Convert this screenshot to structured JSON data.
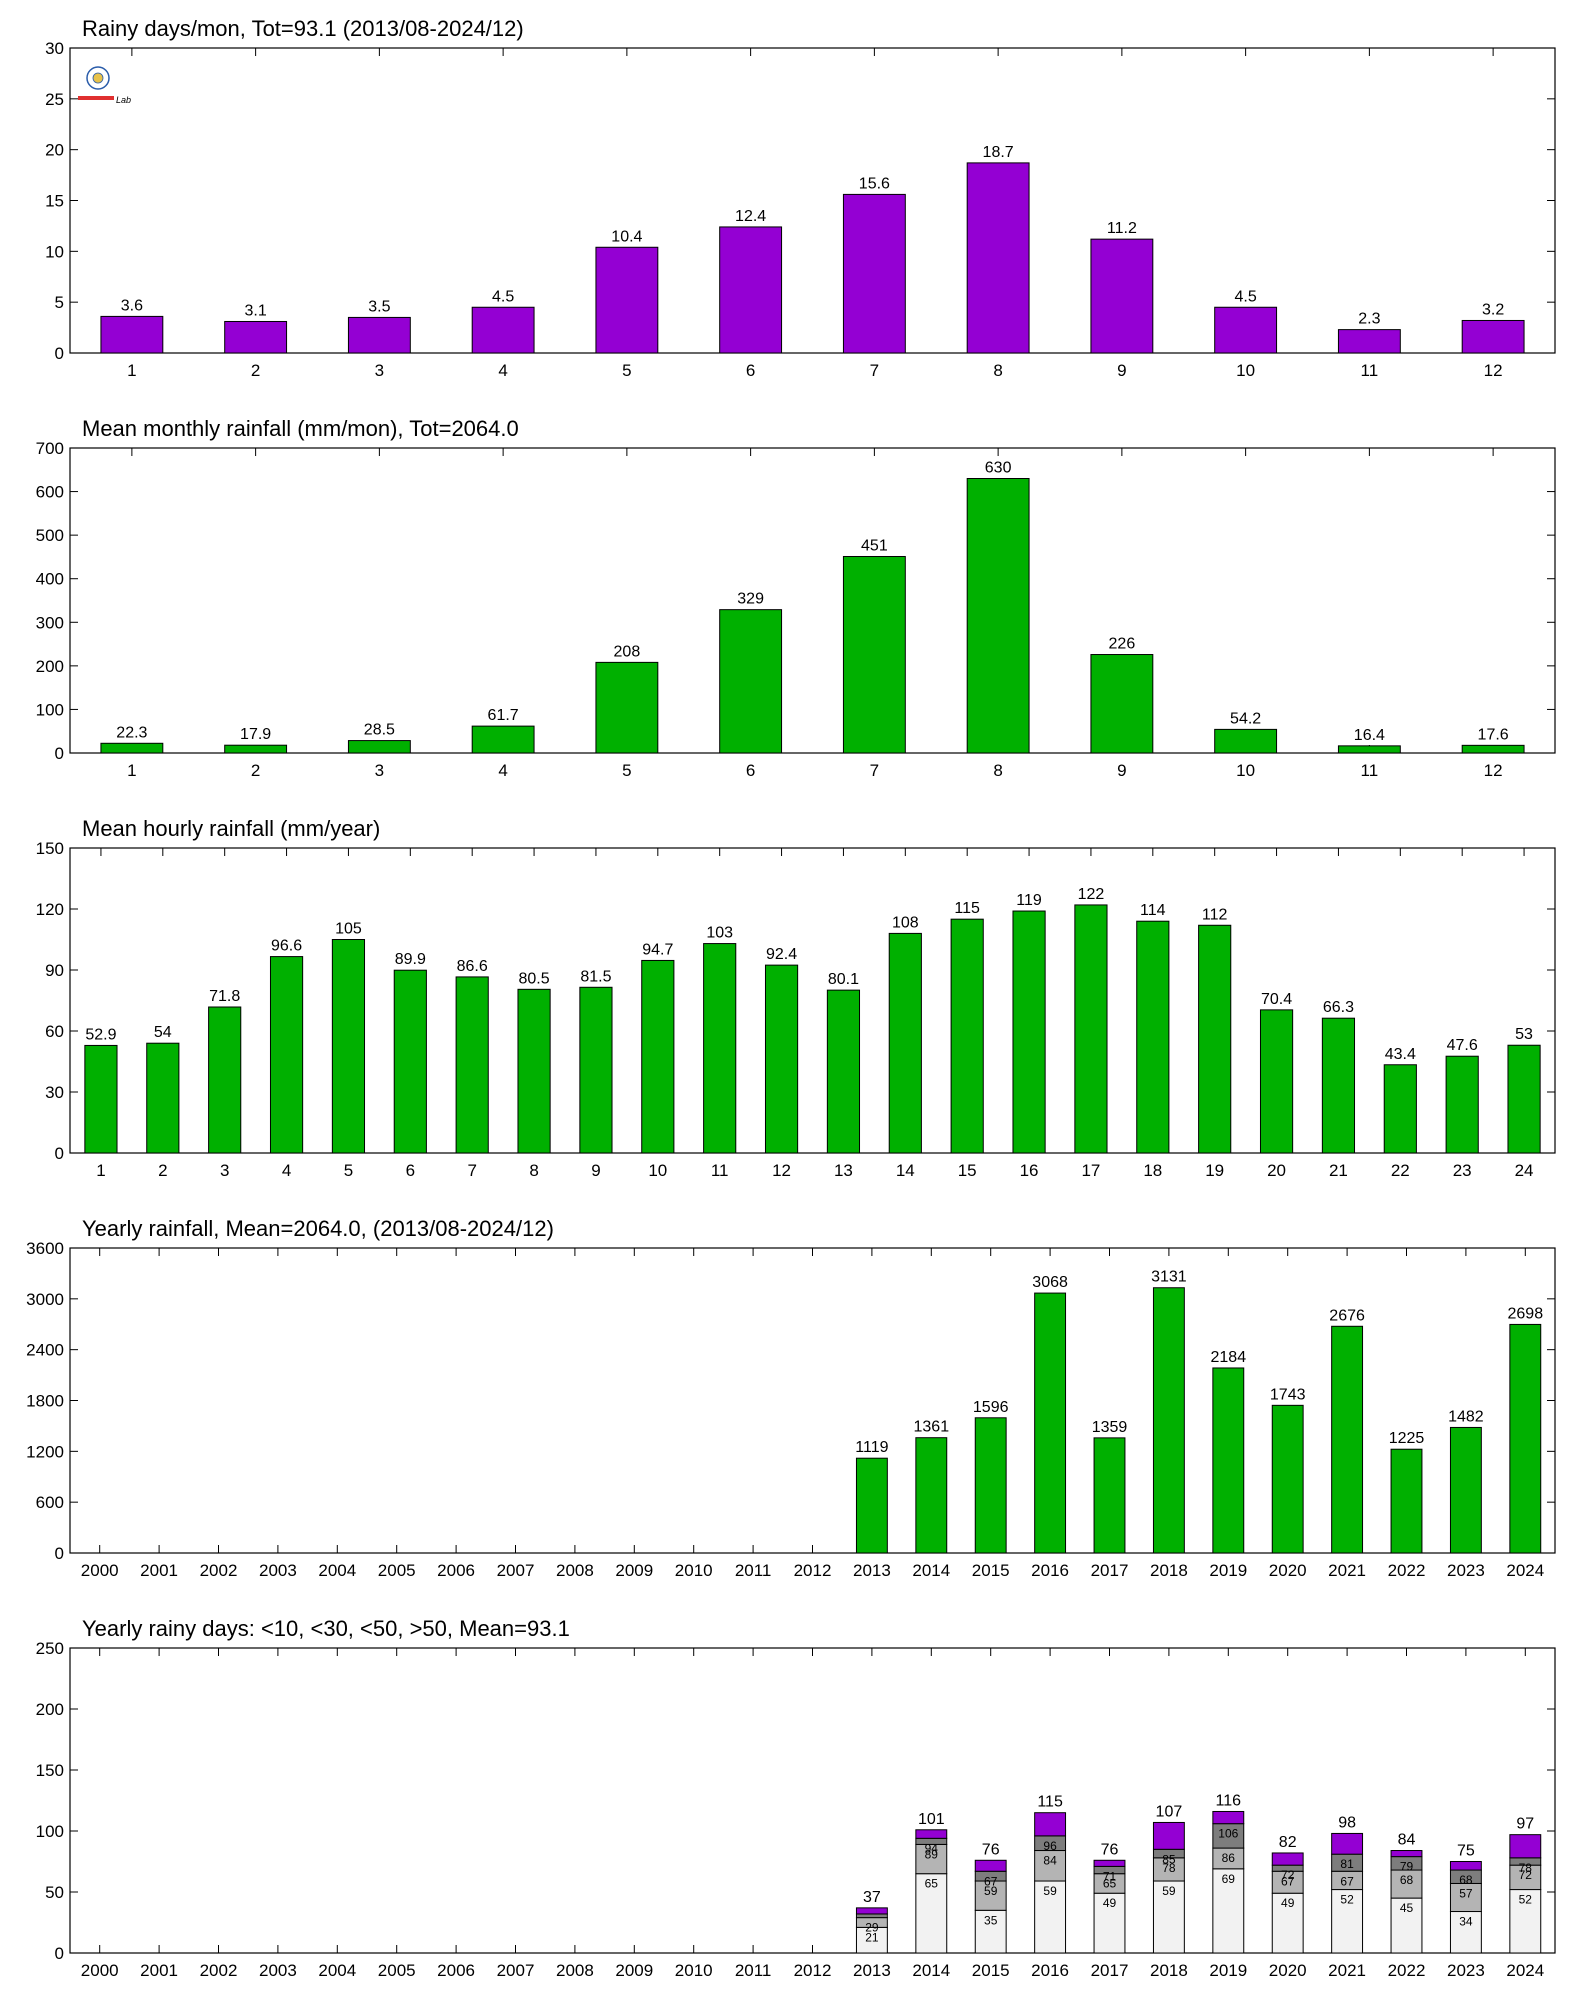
{
  "colors": {
    "purple": "#9400d3",
    "green": "#00b000",
    "axis": "#000000",
    "stack_lt10": "#f2f2f2",
    "stack_lt30": "#b4b4b4",
    "stack_lt50": "#7d7d7d",
    "stack_gt50": "#9400d3"
  },
  "logo": {
    "text": "Lab"
  },
  "chart_data": [
    {
      "id": "rainy-days",
      "type": "bar",
      "title": "Rainy days/mon, Tot=93.1 (2013/08-2024/12)",
      "categories": [
        "1",
        "2",
        "3",
        "4",
        "5",
        "6",
        "7",
        "8",
        "9",
        "10",
        "11",
        "12"
      ],
      "values": [
        3.6,
        3.1,
        3.5,
        4.5,
        10.4,
        12.4,
        15.6,
        18.7,
        11.2,
        4.5,
        2.3,
        3.2
      ],
      "labels": [
        "3.6",
        "3.1",
        "3.5",
        "4.5",
        "10.4",
        "12.4",
        "15.6",
        "18.7",
        "11.2",
        "4.5",
        "2.3",
        "3.2"
      ],
      "ylim": [
        0,
        30
      ],
      "yticks": [
        0,
        5,
        10,
        15,
        20,
        25,
        30
      ],
      "color": "#9400d3"
    },
    {
      "id": "monthly-rainfall",
      "type": "bar",
      "title": "Mean monthly rainfall (mm/mon), Tot=2064.0",
      "categories": [
        "1",
        "2",
        "3",
        "4",
        "5",
        "6",
        "7",
        "8",
        "9",
        "10",
        "11",
        "12"
      ],
      "values": [
        22.3,
        17.9,
        28.5,
        61.7,
        208,
        329,
        451,
        630,
        226,
        54.2,
        16.4,
        17.6
      ],
      "labels": [
        "22.3",
        "17.9",
        "28.5",
        "61.7",
        "208",
        "329",
        "451",
        "630",
        "226",
        "54.2",
        "16.4",
        "17.6"
      ],
      "ylim": [
        0,
        700
      ],
      "yticks": [
        0,
        100,
        200,
        300,
        400,
        500,
        600,
        700
      ],
      "color": "#00b000"
    },
    {
      "id": "hourly-rainfall",
      "type": "bar",
      "title": "Mean hourly rainfall (mm/year)",
      "categories": [
        "1",
        "2",
        "3",
        "4",
        "5",
        "6",
        "7",
        "8",
        "9",
        "10",
        "11",
        "12",
        "13",
        "14",
        "15",
        "16",
        "17",
        "18",
        "19",
        "20",
        "21",
        "22",
        "23",
        "24"
      ],
      "values": [
        52.9,
        54,
        71.8,
        96.6,
        105,
        89.9,
        86.6,
        80.5,
        81.5,
        94.7,
        103,
        92.4,
        80.1,
        108,
        115,
        119,
        122,
        114,
        112,
        70.4,
        66.3,
        43.4,
        47.6,
        53
      ],
      "labels": [
        "52.9",
        "54",
        "71.8",
        "96.6",
        "105",
        "89.9",
        "86.6",
        "80.5",
        "81.5",
        "94.7",
        "103",
        "92.4",
        "80.1",
        "108",
        "115",
        "119",
        "122",
        "114",
        "112",
        "70.4",
        "66.3",
        "43.4",
        "47.6",
        "53"
      ],
      "ylim": [
        0,
        150
      ],
      "yticks": [
        0,
        30,
        60,
        90,
        120,
        150
      ],
      "color": "#00b000"
    },
    {
      "id": "yearly-rainfall",
      "type": "bar",
      "title": "Yearly rainfall, Mean=2064.0, (2013/08-2024/12)",
      "categories": [
        "2000",
        "2001",
        "2002",
        "2003",
        "2004",
        "2005",
        "2006",
        "2007",
        "2008",
        "2009",
        "2010",
        "2011",
        "2012",
        "2013",
        "2014",
        "2015",
        "2016",
        "2017",
        "2018",
        "2019",
        "2020",
        "2021",
        "2022",
        "2023",
        "2024"
      ],
      "values": [
        null,
        null,
        null,
        null,
        null,
        null,
        null,
        null,
        null,
        null,
        null,
        null,
        null,
        1119,
        1361,
        1596,
        3068,
        1359,
        3131,
        2184,
        1743,
        2676,
        1225,
        1482,
        2698
      ],
      "labels": [
        "",
        "",
        "",
        "",
        "",
        "",
        "",
        "",
        "",
        "",
        "",
        "",
        "",
        "1119",
        "1361",
        "1596",
        "3068",
        "1359",
        "3131",
        "2184",
        "1743",
        "2676",
        "1225",
        "1482",
        "2698"
      ],
      "ylim": [
        0,
        3600
      ],
      "yticks": [
        0,
        600,
        1200,
        1800,
        2400,
        3000,
        3600
      ],
      "color": "#00b000"
    },
    {
      "id": "yearly-rainy-days",
      "type": "bar",
      "stacked": true,
      "title": "Yearly rainy days: <10, <30, <50, >50, Mean=93.1",
      "categories": [
        "2000",
        "2001",
        "2002",
        "2003",
        "2004",
        "2005",
        "2006",
        "2007",
        "2008",
        "2009",
        "2010",
        "2011",
        "2012",
        "2013",
        "2014",
        "2015",
        "2016",
        "2017",
        "2018",
        "2019",
        "2020",
        "2021",
        "2022",
        "2023",
        "2024"
      ],
      "ylim": [
        0,
        250
      ],
      "yticks": [
        0,
        50,
        100,
        150,
        200,
        250
      ],
      "stack_years": [
        "2013",
        "2014",
        "2015",
        "2016",
        "2017",
        "2018",
        "2019",
        "2020",
        "2021",
        "2022",
        "2023",
        "2024"
      ],
      "cum_lt10": [
        21,
        65,
        35,
        59,
        49,
        59,
        69,
        49,
        52,
        45,
        34,
        52
      ],
      "cum_lt30": [
        29,
        89,
        59,
        84,
        65,
        78,
        86,
        67,
        67,
        68,
        57,
        72
      ],
      "cum_lt50": [
        32,
        94,
        67,
        96,
        71,
        85,
        106,
        72,
        81,
        79,
        68,
        78
      ],
      "totals": [
        37,
        101,
        76,
        115,
        76,
        107,
        116,
        82,
        98,
        84,
        75,
        97
      ],
      "label_lt10": [
        "21",
        "65",
        "35",
        "59",
        "49",
        "59",
        "69",
        "49",
        "52",
        "45",
        "34",
        "52"
      ],
      "label_lt30": [
        "29",
        "89",
        "59",
        "84",
        "65",
        "78",
        "86",
        "67",
        "67",
        "68",
        "57",
        "72"
      ],
      "label_lt50": [
        "",
        "94",
        "67",
        "96",
        "71",
        "85",
        "106",
        "72",
        "81",
        "79",
        "68",
        "78"
      ],
      "label_total": [
        "37",
        "101",
        "76",
        "115",
        "76",
        "107",
        "116",
        "82",
        "98",
        "84",
        "75",
        "97"
      ]
    }
  ]
}
